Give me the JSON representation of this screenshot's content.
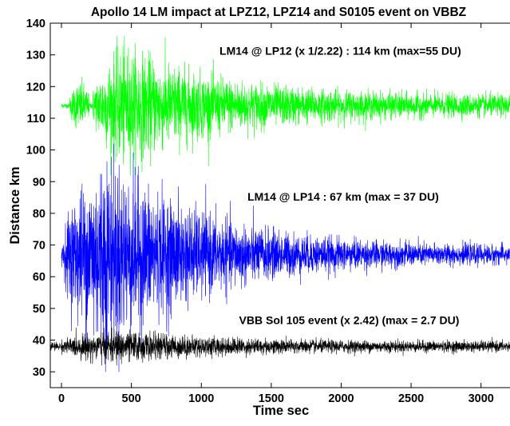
{
  "chart_data": {
    "type": "line",
    "title": "Apollo 14 LM impact at LPZ12, LPZ14 and S0105 event on VBBZ",
    "xlabel": "Time sec",
    "ylabel": "Distance km",
    "xlim": [
      -80,
      3230
    ],
    "ylim": [
      25,
      140
    ],
    "xticks": [
      0,
      500,
      1000,
      1500,
      2000,
      2500,
      3000
    ],
    "yticks": [
      30,
      40,
      50,
      60,
      70,
      80,
      90,
      100,
      110,
      120,
      130,
      140
    ],
    "grid": false,
    "series": [
      {
        "color": "#00ff00",
        "baseline": 114,
        "t_start": 0,
        "t_end": 3230,
        "precursor_end": 220,
        "peak_time": 450,
        "peak_max": 136,
        "peak_min": 92,
        "end_amplitude": 1.5
      },
      {
        "color": "#0000ff",
        "baseline": 67,
        "t_start": 0,
        "t_end": 3230,
        "precursor_end": 0,
        "peak_time": 300,
        "peak_max": 102,
        "peak_min": 30,
        "end_amplitude": 1.2
      },
      {
        "color": "#000000",
        "baseline": 38,
        "t_start": -80,
        "t_end": 3230,
        "precursor_end": 0,
        "peak_time": 400,
        "peak_max": 44,
        "peak_min": 32,
        "end_amplitude": 0.8
      }
    ],
    "annotations": [
      {
        "text": "LM14 @ LP12 (x 1/2.22) : 114 km (max=55 DU)",
        "x": 1130,
        "y": 130
      },
      {
        "text": "LM14 @ LP14 : 67 km (max = 37 DU)",
        "x": 1330,
        "y": 84
      },
      {
        "text": "VBB Sol 105 event (x 2.42) (max = 2.7 DU)",
        "x": 1270,
        "y": 45
      }
    ]
  }
}
